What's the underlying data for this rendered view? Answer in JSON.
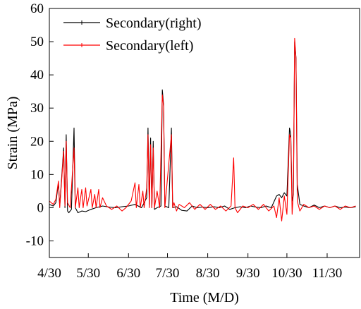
{
  "chart_data": {
    "type": "line",
    "title": "",
    "xlabel": "Time (M/D)",
    "ylabel": "Strain (MPa)",
    "ylim": [
      -15,
      60
    ],
    "yticks": [
      -10,
      0,
      10,
      20,
      30,
      40,
      50,
      60
    ],
    "xlim": [
      "2019-04-30",
      "2019-12-25"
    ],
    "xticks": [
      {
        "date": "2019-04-30",
        "label": "4/30"
      },
      {
        "date": "2019-05-30",
        "label": "5/30"
      },
      {
        "date": "2019-06-30",
        "label": "6/30"
      },
      {
        "date": "2019-07-30",
        "label": "7/30"
      },
      {
        "date": "2019-08-30",
        "label": "8/30"
      },
      {
        "date": "2019-09-30",
        "label": "9/30"
      },
      {
        "date": "2019-10-30",
        "label": "10/30"
      },
      {
        "date": "2019-11-30",
        "label": "11/30"
      }
    ],
    "grid": false,
    "legend_position": "top-left",
    "series": [
      {
        "name": "Secondary(right)",
        "color": "#000000",
        "points": [
          [
            "2019-04-30",
            1.0
          ],
          [
            "2019-05-03",
            0.5
          ],
          [
            "2019-05-05",
            1.5
          ],
          [
            "2019-05-07",
            7.5
          ],
          [
            "2019-05-08",
            0.5
          ],
          [
            "2019-05-11",
            18.0
          ],
          [
            "2019-05-12",
            0.0
          ],
          [
            "2019-05-13",
            22.0
          ],
          [
            "2019-05-14",
            -1.0
          ],
          [
            "2019-05-15",
            -1.5
          ],
          [
            "2019-05-17",
            -0.5
          ],
          [
            "2019-05-19",
            24.0
          ],
          [
            "2019-05-20",
            0.0
          ],
          [
            "2019-05-22",
            -1.5
          ],
          [
            "2019-05-25",
            -1.0
          ],
          [
            "2019-05-28",
            -1.2
          ],
          [
            "2019-06-01",
            -0.5
          ],
          [
            "2019-06-05",
            0.0
          ],
          [
            "2019-06-10",
            0.5
          ],
          [
            "2019-06-15",
            0.2
          ],
          [
            "2019-06-20",
            0.0
          ],
          [
            "2019-06-25",
            0.3
          ],
          [
            "2019-06-30",
            0.5
          ],
          [
            "2019-07-05",
            1.0
          ],
          [
            "2019-07-10",
            0.0
          ],
          [
            "2019-07-14",
            3.0
          ],
          [
            "2019-07-15",
            24.0
          ],
          [
            "2019-07-16",
            1.0
          ],
          [
            "2019-07-17",
            21.0
          ],
          [
            "2019-07-18",
            0.0
          ],
          [
            "2019-07-19",
            20.0
          ],
          [
            "2019-07-20",
            -0.5
          ],
          [
            "2019-07-22",
            0.0
          ],
          [
            "2019-07-25",
            0.5
          ],
          [
            "2019-07-26",
            35.5
          ],
          [
            "2019-07-27",
            31.0
          ],
          [
            "2019-07-28",
            0.5
          ],
          [
            "2019-07-31",
            0.0
          ],
          [
            "2019-08-02",
            24.0
          ],
          [
            "2019-08-03",
            0.0
          ],
          [
            "2019-08-06",
            0.3
          ],
          [
            "2019-08-10",
            -0.8
          ],
          [
            "2019-08-14",
            -1.0
          ],
          [
            "2019-08-18",
            0.5
          ],
          [
            "2019-08-22",
            0.0
          ],
          [
            "2019-08-26",
            0.2
          ],
          [
            "2019-08-30",
            0.0
          ],
          [
            "2019-09-04",
            0.3
          ],
          [
            "2019-09-08",
            0.0
          ],
          [
            "2019-09-12",
            0.5
          ],
          [
            "2019-09-16",
            -0.5
          ],
          [
            "2019-09-20",
            0.0
          ],
          [
            "2019-09-24",
            0.3
          ],
          [
            "2019-09-28",
            0.0
          ],
          [
            "2019-10-02",
            0.5
          ],
          [
            "2019-10-06",
            0.2
          ],
          [
            "2019-10-10",
            0.0
          ],
          [
            "2019-10-14",
            0.5
          ],
          [
            "2019-10-18",
            0.0
          ],
          [
            "2019-10-22",
            3.5
          ],
          [
            "2019-10-24",
            4.0
          ],
          [
            "2019-10-26",
            3.0
          ],
          [
            "2019-10-28",
            4.5
          ],
          [
            "2019-10-30",
            3.5
          ],
          [
            "2019-11-01",
            24.0
          ],
          [
            "2019-11-02",
            22.0
          ],
          [
            "2019-11-03",
            2.0
          ],
          [
            "2019-11-04",
            4.0
          ],
          [
            "2019-11-05",
            50.0
          ],
          [
            "2019-11-06",
            45.0
          ],
          [
            "2019-11-07",
            7.0
          ],
          [
            "2019-11-09",
            1.0
          ],
          [
            "2019-11-12",
            0.5
          ],
          [
            "2019-11-16",
            0.0
          ],
          [
            "2019-11-20",
            0.8
          ],
          [
            "2019-11-24",
            0.0
          ],
          [
            "2019-11-28",
            0.5
          ],
          [
            "2019-12-02",
            0.0
          ],
          [
            "2019-12-06",
            0.5
          ],
          [
            "2019-12-10",
            0.0
          ],
          [
            "2019-12-14",
            0.2
          ],
          [
            "2019-12-18",
            0.0
          ],
          [
            "2019-12-22",
            0.3
          ]
        ]
      },
      {
        "name": "Secondary(left)",
        "color": "#ff0000",
        "points": [
          [
            "2019-04-30",
            2.0
          ],
          [
            "2019-05-03",
            1.0
          ],
          [
            "2019-05-05",
            2.5
          ],
          [
            "2019-05-07",
            8.0
          ],
          [
            "2019-05-08",
            0.0
          ],
          [
            "2019-05-11",
            17.0
          ],
          [
            "2019-05-12",
            0.5
          ],
          [
            "2019-05-13",
            20.0
          ],
          [
            "2019-05-14",
            1.5
          ],
          [
            "2019-05-16",
            0.0
          ],
          [
            "2019-05-19",
            18.0
          ],
          [
            "2019-05-20",
            0.0
          ],
          [
            "2019-05-22",
            6.0
          ],
          [
            "2019-05-23",
            0.0
          ],
          [
            "2019-05-25",
            5.5
          ],
          [
            "2019-05-26",
            0.0
          ],
          [
            "2019-05-28",
            6.0
          ],
          [
            "2019-05-29",
            0.5
          ],
          [
            "2019-06-01",
            5.5
          ],
          [
            "2019-06-02",
            0.0
          ],
          [
            "2019-06-04",
            4.0
          ],
          [
            "2019-06-05",
            0.0
          ],
          [
            "2019-06-07",
            5.5
          ],
          [
            "2019-06-08",
            0.0
          ],
          [
            "2019-06-10",
            3.0
          ],
          [
            "2019-06-13",
            0.5
          ],
          [
            "2019-06-17",
            -0.5
          ],
          [
            "2019-06-21",
            0.5
          ],
          [
            "2019-06-25",
            -1.0
          ],
          [
            "2019-06-28",
            0.0
          ],
          [
            "2019-07-02",
            2.0
          ],
          [
            "2019-07-05",
            7.5
          ],
          [
            "2019-07-06",
            0.0
          ],
          [
            "2019-07-08",
            7.0
          ],
          [
            "2019-07-09",
            0.0
          ],
          [
            "2019-07-11",
            5.0
          ],
          [
            "2019-07-12",
            0.0
          ],
          [
            "2019-07-14",
            6.0
          ],
          [
            "2019-07-15",
            22.0
          ],
          [
            "2019-07-16",
            0.0
          ],
          [
            "2019-07-17",
            19.0
          ],
          [
            "2019-07-18",
            0.0
          ],
          [
            "2019-07-19",
            18.0
          ],
          [
            "2019-07-20",
            0.0
          ],
          [
            "2019-07-22",
            5.0
          ],
          [
            "2019-07-24",
            0.0
          ],
          [
            "2019-07-26",
            34.0
          ],
          [
            "2019-07-27",
            30.5
          ],
          [
            "2019-07-28",
            0.0
          ],
          [
            "2019-08-02",
            22.0
          ],
          [
            "2019-08-03",
            0.0
          ],
          [
            "2019-08-04",
            1.5
          ],
          [
            "2019-08-06",
            -1.0
          ],
          [
            "2019-08-08",
            1.0
          ],
          [
            "2019-08-12",
            0.0
          ],
          [
            "2019-08-16",
            1.5
          ],
          [
            "2019-08-20",
            -0.5
          ],
          [
            "2019-08-24",
            1.0
          ],
          [
            "2019-08-28",
            -0.5
          ],
          [
            "2019-09-01",
            1.0
          ],
          [
            "2019-09-05",
            -0.5
          ],
          [
            "2019-09-09",
            0.5
          ],
          [
            "2019-09-13",
            -1.0
          ],
          [
            "2019-09-17",
            0.5
          ],
          [
            "2019-09-19",
            15.0
          ],
          [
            "2019-09-20",
            0.0
          ],
          [
            "2019-09-22",
            -1.5
          ],
          [
            "2019-09-26",
            0.5
          ],
          [
            "2019-09-30",
            0.0
          ],
          [
            "2019-10-04",
            1.0
          ],
          [
            "2019-10-08",
            -0.5
          ],
          [
            "2019-10-12",
            1.0
          ],
          [
            "2019-10-16",
            -1.0
          ],
          [
            "2019-10-20",
            0.5
          ],
          [
            "2019-10-22",
            -3.0
          ],
          [
            "2019-10-24",
            3.0
          ],
          [
            "2019-10-26",
            -4.0
          ],
          [
            "2019-10-28",
            3.5
          ],
          [
            "2019-10-30",
            -2.0
          ],
          [
            "2019-11-01",
            22.0
          ],
          [
            "2019-11-02",
            21.0
          ],
          [
            "2019-11-03",
            -2.0
          ],
          [
            "2019-11-04",
            5.0
          ],
          [
            "2019-11-05",
            51.0
          ],
          [
            "2019-11-06",
            45.0
          ],
          [
            "2019-11-07",
            2.0
          ],
          [
            "2019-11-09",
            -1.0
          ],
          [
            "2019-11-12",
            1.0
          ],
          [
            "2019-11-16",
            0.0
          ],
          [
            "2019-11-20",
            0.5
          ],
          [
            "2019-11-24",
            -0.5
          ],
          [
            "2019-11-28",
            0.5
          ],
          [
            "2019-12-02",
            0.0
          ],
          [
            "2019-12-06",
            0.5
          ],
          [
            "2019-12-10",
            -0.5
          ],
          [
            "2019-12-14",
            0.5
          ],
          [
            "2019-12-18",
            0.0
          ],
          [
            "2019-12-22",
            0.5
          ]
        ]
      }
    ]
  }
}
